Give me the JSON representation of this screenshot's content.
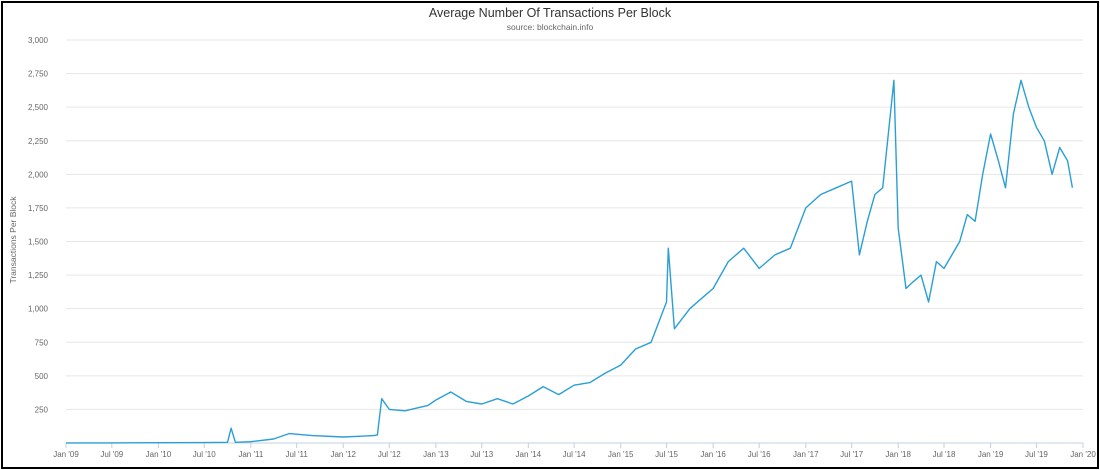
{
  "chart_data": {
    "type": "line",
    "title": "Average Number Of Transactions Per Block",
    "subtitle": "source: blockchain.info",
    "xlabel": "",
    "ylabel": "Transactions Per Block",
    "ylim": [
      0,
      3000
    ],
    "yticks": [
      "3,000",
      "2,750",
      "2,500",
      "2,250",
      "2,000",
      "1,750",
      "1,500",
      "1,250",
      "1,000",
      "750",
      "500",
      "250"
    ],
    "ytick_values": [
      3000,
      2750,
      2500,
      2250,
      2000,
      1750,
      1500,
      1250,
      1000,
      750,
      500,
      250
    ],
    "xticks": [
      "Jan '09",
      "Jul '09",
      "Jan '10",
      "Jul '10",
      "Jan '11",
      "Jul '11",
      "Jan '12",
      "Jul '12",
      "Jan '13",
      "Jul '13",
      "Jan '14",
      "Jul '14",
      "Jan '15",
      "Jul '15",
      "Jan '16",
      "Jul '16",
      "Jan '17",
      "Jul '17",
      "Jan '18",
      "Jul '18",
      "Jan '19",
      "Jul '19",
      "Jan '20"
    ],
    "xlim": [
      "2009-01-01",
      "2020-01-01"
    ],
    "grid": "horizontal",
    "line_color": "#2a9fd6",
    "series": [
      {
        "x": [
          "2009-01-01",
          "2009-07-01",
          "2010-01-01",
          "2010-07-01",
          "2010-10-01",
          "2010-10-15",
          "2010-11-01",
          "2011-01-01",
          "2011-04-01",
          "2011-06-01",
          "2011-09-01",
          "2012-01-01",
          "2012-03-01",
          "2012-05-01",
          "2012-05-15",
          "2012-06-01",
          "2012-07-01",
          "2012-09-01",
          "2012-12-01",
          "2013-01-01",
          "2013-03-01",
          "2013-05-01",
          "2013-07-01",
          "2013-09-01",
          "2013-11-01",
          "2014-01-01",
          "2014-03-01",
          "2014-05-01",
          "2014-07-01",
          "2014-09-01",
          "2014-11-01",
          "2015-01-01",
          "2015-03-01",
          "2015-05-01",
          "2015-07-01",
          "2015-07-08",
          "2015-08-01",
          "2015-10-01",
          "2015-12-01",
          "2016-01-01",
          "2016-03-01",
          "2016-05-01",
          "2016-07-01",
          "2016-09-01",
          "2016-11-01",
          "2017-01-01",
          "2017-03-01",
          "2017-05-01",
          "2017-07-01",
          "2017-08-01",
          "2017-09-01",
          "2017-10-01",
          "2017-11-01",
          "2017-12-15",
          "2018-01-01",
          "2018-02-01",
          "2018-03-01",
          "2018-04-01",
          "2018-05-01",
          "2018-06-01",
          "2018-07-01",
          "2018-08-01",
          "2018-09-01",
          "2018-10-01",
          "2018-11-01",
          "2018-12-01",
          "2019-01-01",
          "2019-02-01",
          "2019-03-01",
          "2019-04-01",
          "2019-05-01",
          "2019-06-01",
          "2019-07-01",
          "2019-08-01",
          "2019-09-01",
          "2019-10-01",
          "2019-11-01",
          "2019-11-20"
        ],
        "y": [
          1,
          1,
          2,
          3,
          5,
          110,
          5,
          10,
          30,
          70,
          55,
          45,
          50,
          55,
          60,
          330,
          250,
          240,
          280,
          320,
          380,
          310,
          290,
          330,
          290,
          350,
          420,
          360,
          430,
          450,
          520,
          580,
          700,
          750,
          1050,
          1450,
          850,
          1000,
          1100,
          1150,
          1350,
          1450,
          1300,
          1400,
          1450,
          1750,
          1850,
          1900,
          1950,
          1400,
          1650,
          1850,
          1900,
          2700,
          1600,
          1150,
          1200,
          1250,
          1050,
          1350,
          1300,
          1400,
          1500,
          1700,
          1650,
          2000,
          2300,
          2100,
          1900,
          2450,
          2700,
          2500,
          2350,
          2250,
          2000,
          2200,
          2100,
          1900
        ]
      }
    ]
  }
}
